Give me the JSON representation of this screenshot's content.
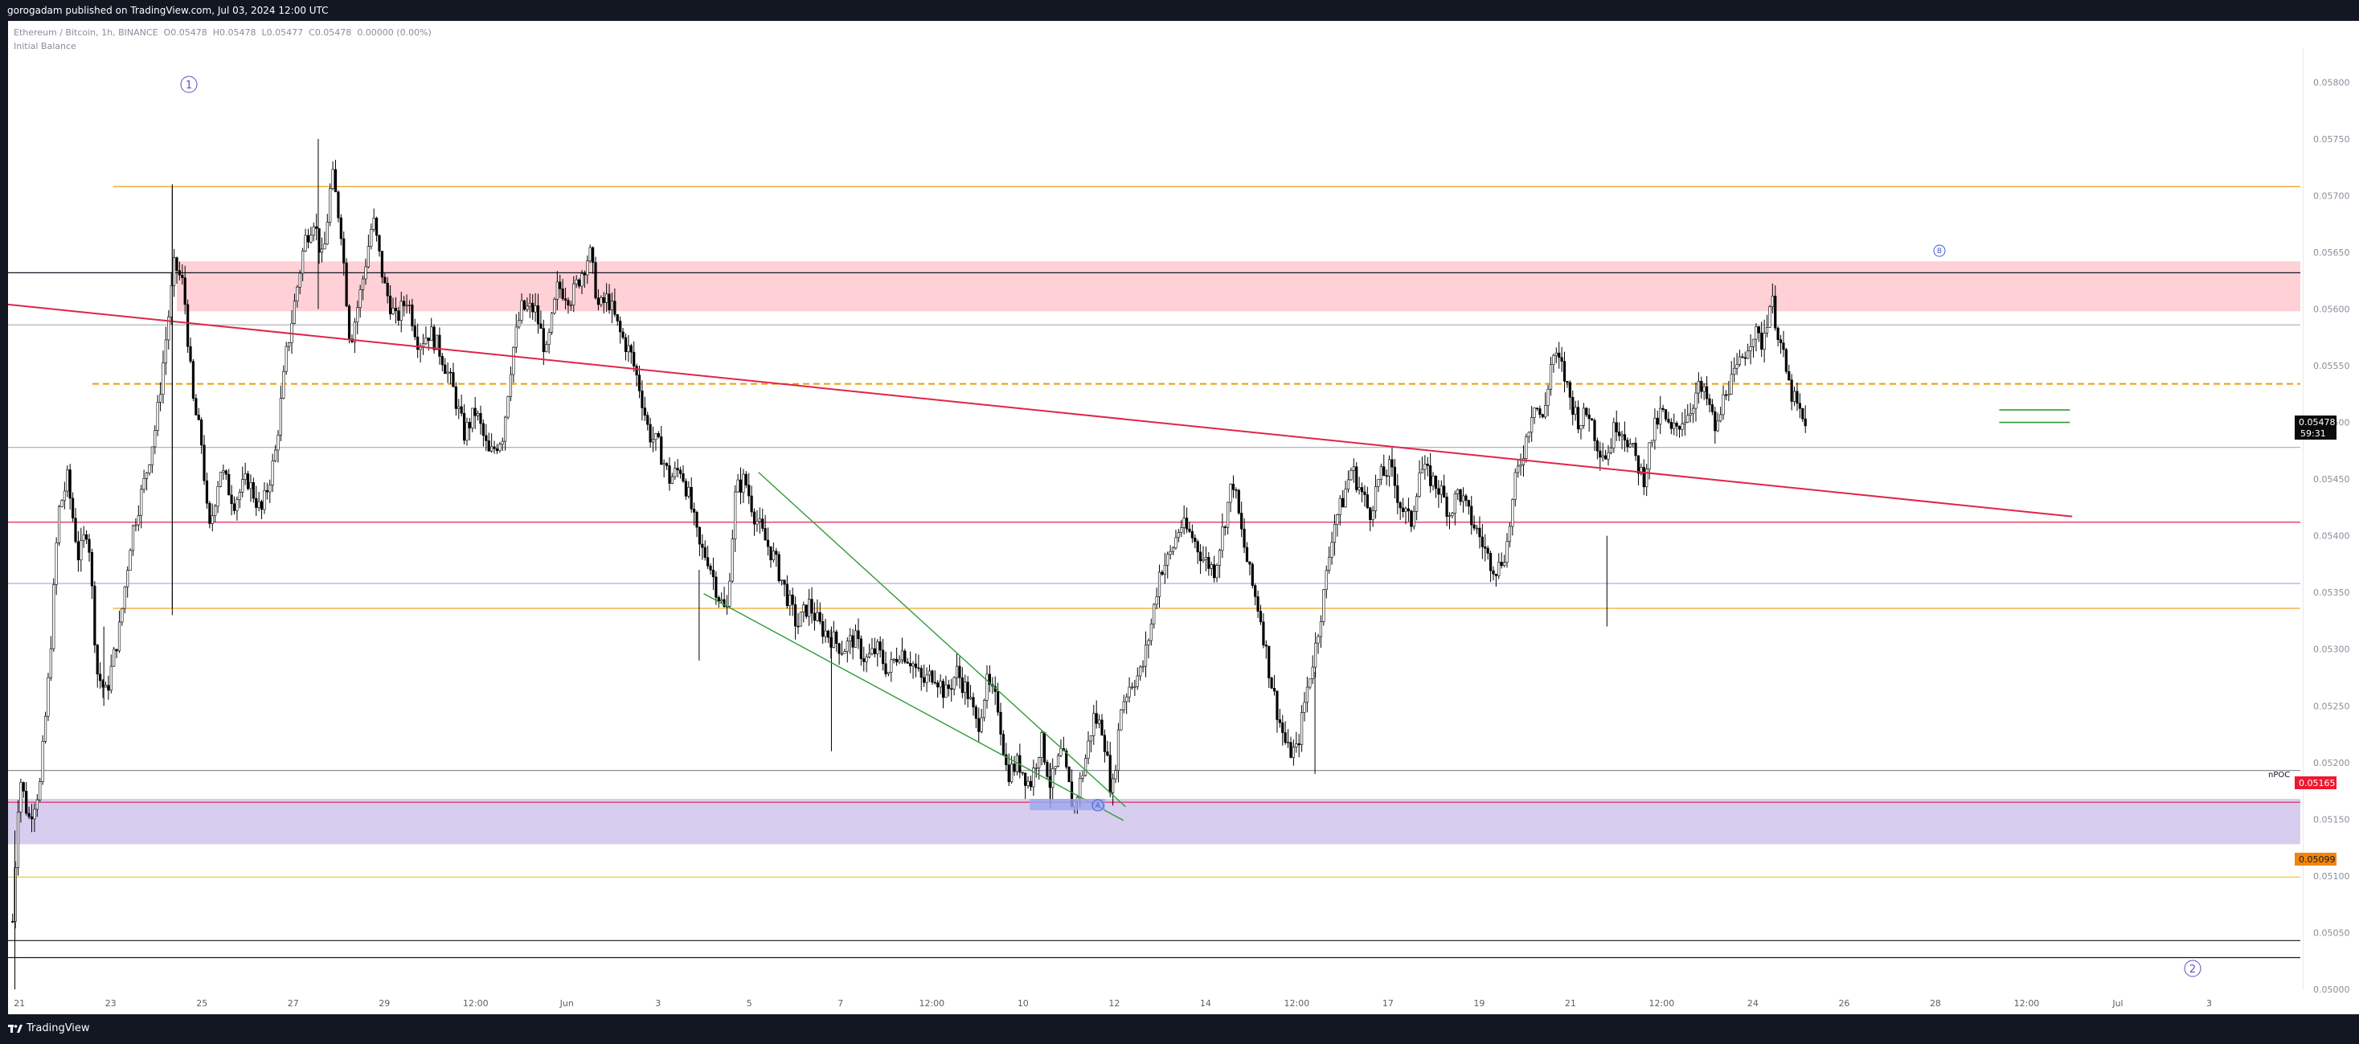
{
  "header": {
    "published": "gorogadam published on TradingView.com, Jul 03, 2024 12:00 UTC"
  },
  "legend": {
    "symbol": "Ethereum / Bitcoin, 1h, BINANCE",
    "o_label": "O",
    "o": "0.05478",
    "h_label": "H",
    "h": "0.05478",
    "l_label": "L",
    "l": "0.05477",
    "c_label": "C",
    "c": "0.05478",
    "change": "0.00000 (0.00%)",
    "indicator": "Initial Balance"
  },
  "footer": {
    "brand": "TradingView"
  },
  "markers": {
    "m1": "1",
    "m2": "2",
    "mA": "A",
    "mB": "B",
    "npoc": "nPOC"
  },
  "badges": {
    "last_price": "0.05478",
    "countdown": "59:31",
    "npoc_price": "0.05165",
    "level_price": "0.05099"
  },
  "colors": {
    "background": "#ffffff",
    "frame": "#131722",
    "candle": "#000000",
    "trend_red": "#e0244a",
    "trend_green": "#2e9c3a",
    "orange": "#f29b0a",
    "resistance_zone": "#ffd0d6",
    "support_zone": "#d7cdef",
    "purple_line": "#b39ddb",
    "badge_red": "#f0182f",
    "badge_orange": "#f2850a",
    "marker": "#5b4ec9"
  },
  "chart_data": {
    "type": "candlestick",
    "symbol": "Ethereum / Bitcoin",
    "timeframe": "1h",
    "exchange": "BINANCE",
    "ylim": [
      0.05,
      0.0583
    ],
    "y_ticks": [
      "0.05800",
      "0.05750",
      "0.05700",
      "0.05650",
      "0.05600",
      "0.05550",
      "0.05500",
      "0.05450",
      "0.05400",
      "0.05350",
      "0.05300",
      "0.05250",
      "0.05200",
      "0.05150",
      "0.05100",
      "0.05050",
      "0.05000"
    ],
    "x_ticks": [
      "21",
      "23",
      "25",
      "27",
      "29",
      "12:00",
      "Jun",
      "3",
      "5",
      "7",
      "12:00",
      "10",
      "12",
      "14",
      "12:00",
      "17",
      "19",
      "21",
      "12:00",
      "24",
      "26",
      "28",
      "12:00",
      "Jul",
      "3"
    ],
    "x_tick_units": [
      0,
      4,
      8,
      12,
      16,
      20,
      24,
      28,
      32,
      36,
      40,
      44,
      48,
      52,
      56,
      60,
      64,
      68,
      72,
      76,
      80,
      84,
      88,
      92,
      96
    ],
    "x_range": [
      -0.5,
      100
    ],
    "price_path": [
      [
        -0.3,
        0.0506
      ],
      [
        0,
        0.0519
      ],
      [
        0.4,
        0.0515
      ],
      [
        0.9,
        0.0518
      ],
      [
        1.3,
        0.0528
      ],
      [
        1.7,
        0.0542
      ],
      [
        2.1,
        0.0545
      ],
      [
        2.6,
        0.0538
      ],
      [
        3,
        0.0541
      ],
      [
        3.4,
        0.0528
      ],
      [
        3.8,
        0.0526
      ],
      [
        4.4,
        0.0532
      ],
      [
        4.9,
        0.054
      ],
      [
        5.5,
        0.0545
      ],
      [
        6,
        0.055
      ],
      [
        6.4,
        0.0557
      ],
      [
        6.8,
        0.0564
      ],
      [
        7.2,
        0.0562
      ],
      [
        7.6,
        0.0552
      ],
      [
        8,
        0.0548
      ],
      [
        8.3,
        0.054
      ],
      [
        8.8,
        0.0546
      ],
      [
        9.4,
        0.0543
      ],
      [
        10,
        0.0545
      ],
      [
        10.6,
        0.0542
      ],
      [
        11.2,
        0.0547
      ],
      [
        11.7,
        0.0556
      ],
      [
        12.1,
        0.0561
      ],
      [
        12.5,
        0.0566
      ],
      [
        12.9,
        0.0568
      ],
      [
        13.3,
        0.0564
      ],
      [
        13.7,
        0.0572
      ],
      [
        14.1,
        0.0567
      ],
      [
        14.5,
        0.0557
      ],
      [
        15,
        0.0562
      ],
      [
        15.5,
        0.0568
      ],
      [
        16,
        0.0562
      ],
      [
        16.5,
        0.0559
      ],
      [
        17,
        0.0561
      ],
      [
        17.5,
        0.0557
      ],
      [
        18,
        0.0558
      ],
      [
        18.5,
        0.0556
      ],
      [
        19,
        0.0553
      ],
      [
        19.5,
        0.0549
      ],
      [
        20,
        0.0551
      ],
      [
        20.6,
        0.0547
      ],
      [
        21.2,
        0.0549
      ],
      [
        21.6,
        0.0556
      ],
      [
        22,
        0.056
      ],
      [
        22.6,
        0.056
      ],
      [
        23.1,
        0.0556
      ],
      [
        23.6,
        0.0562
      ],
      [
        24.2,
        0.0561
      ],
      [
        24.6,
        0.0563
      ],
      [
        25,
        0.0565
      ],
      [
        25.4,
        0.056
      ],
      [
        25.8,
        0.0561
      ],
      [
        26.3,
        0.0558
      ],
      [
        26.8,
        0.0556
      ],
      [
        27.2,
        0.0553
      ],
      [
        27.6,
        0.0549
      ],
      [
        28,
        0.0548
      ],
      [
        28.5,
        0.0545
      ],
      [
        29,
        0.0546
      ],
      [
        29.4,
        0.0543
      ],
      [
        29.8,
        0.0539
      ],
      [
        30.2,
        0.0538
      ],
      [
        30.6,
        0.0535
      ],
      [
        31,
        0.0533
      ],
      [
        31.4,
        0.0544
      ],
      [
        31.8,
        0.0545
      ],
      [
        32.2,
        0.0542
      ],
      [
        32.6,
        0.054
      ],
      [
        33.1,
        0.0538
      ],
      [
        33.6,
        0.0535
      ],
      [
        34.1,
        0.0532
      ],
      [
        34.6,
        0.0534
      ],
      [
        35.1,
        0.0532
      ],
      [
        35.6,
        0.0531
      ],
      [
        36.1,
        0.053
      ],
      [
        36.6,
        0.0531
      ],
      [
        37.1,
        0.0529
      ],
      [
        37.6,
        0.053
      ],
      [
        38.1,
        0.0528
      ],
      [
        38.6,
        0.053
      ],
      [
        39.1,
        0.0529
      ],
      [
        39.6,
        0.0527
      ],
      [
        40.1,
        0.0528
      ],
      [
        40.6,
        0.0526
      ],
      [
        41.1,
        0.0528
      ],
      [
        41.6,
        0.0526
      ],
      [
        42,
        0.0523
      ],
      [
        42.4,
        0.0527
      ],
      [
        42.9,
        0.0525
      ],
      [
        43.3,
        0.0519
      ],
      [
        43.8,
        0.052
      ],
      [
        44.3,
        0.0518
      ],
      [
        44.8,
        0.0522
      ],
      [
        45.2,
        0.0518
      ],
      [
        45.7,
        0.0521
      ],
      [
        46.2,
        0.0516
      ],
      [
        46.6,
        0.0519
      ],
      [
        47.1,
        0.0524
      ],
      [
        47.5,
        0.0523
      ],
      [
        47.9,
        0.0517
      ],
      [
        48.3,
        0.0525
      ],
      [
        48.7,
        0.0527
      ],
      [
        49.2,
        0.0528
      ],
      [
        49.6,
        0.0532
      ],
      [
        50,
        0.0537
      ],
      [
        50.4,
        0.0538
      ],
      [
        50.9,
        0.0541
      ],
      [
        51.4,
        0.054
      ],
      [
        51.9,
        0.0538
      ],
      [
        52.4,
        0.0537
      ],
      [
        52.8,
        0.0541
      ],
      [
        53.2,
        0.0545
      ],
      [
        53.6,
        0.054
      ],
      [
        54,
        0.0536
      ],
      [
        54.4,
        0.0533
      ],
      [
        54.8,
        0.0528
      ],
      [
        55.2,
        0.0524
      ],
      [
        55.6,
        0.0521
      ],
      [
        56,
        0.0521
      ],
      [
        56.4,
        0.0526
      ],
      [
        56.8,
        0.053
      ],
      [
        57.2,
        0.0535
      ],
      [
        57.6,
        0.0541
      ],
      [
        58,
        0.0543
      ],
      [
        58.4,
        0.0546
      ],
      [
        58.8,
        0.0544
      ],
      [
        59.2,
        0.0542
      ],
      [
        59.6,
        0.0545
      ],
      [
        60.1,
        0.0546
      ],
      [
        60.5,
        0.0543
      ],
      [
        61,
        0.0541
      ],
      [
        61.4,
        0.0546
      ],
      [
        61.9,
        0.0545
      ],
      [
        62.3,
        0.0544
      ],
      [
        62.7,
        0.0542
      ],
      [
        63.1,
        0.0544
      ],
      [
        63.5,
        0.0542
      ],
      [
        64,
        0.054
      ],
      [
        64.4,
        0.0538
      ],
      [
        64.8,
        0.0537
      ],
      [
        65.2,
        0.0539
      ],
      [
        65.6,
        0.0545
      ],
      [
        66,
        0.0548
      ],
      [
        66.4,
        0.0552
      ],
      [
        66.8,
        0.055
      ],
      [
        67.2,
        0.0556
      ],
      [
        67.6,
        0.0555
      ],
      [
        68,
        0.0552
      ],
      [
        68.4,
        0.055
      ],
      [
        68.8,
        0.0551
      ],
      [
        69.2,
        0.0548
      ],
      [
        69.6,
        0.0547
      ],
      [
        70,
        0.055
      ],
      [
        70.4,
        0.0549
      ],
      [
        70.8,
        0.0547
      ],
      [
        71.2,
        0.0545
      ],
      [
        71.6,
        0.0549
      ],
      [
        72,
        0.0551
      ],
      [
        72.4,
        0.0549
      ],
      [
        72.8,
        0.055
      ],
      [
        73.2,
        0.0551
      ],
      [
        73.6,
        0.0553
      ],
      [
        74,
        0.0552
      ],
      [
        74.4,
        0.0549
      ],
      [
        74.8,
        0.0553
      ],
      [
        75.2,
        0.0554
      ],
      [
        75.6,
        0.0556
      ],
      [
        76,
        0.0558
      ],
      [
        76.4,
        0.0557
      ],
      [
        76.8,
        0.0561
      ],
      [
        77.2,
        0.0557
      ],
      [
        77.6,
        0.0553
      ],
      [
        78,
        0.0551
      ],
      [
        78.4,
        0.0549
      ]
    ],
    "series": [
      {
        "name": "",
        "color": "#000000",
        "style": "candles"
      }
    ],
    "horizontal_levels": [
      {
        "price": 0.05708,
        "color": "#f29b0a",
        "start_x": 4.1
      },
      {
        "price": 0.05632,
        "color": "#131722",
        "start_x": -0.5
      },
      {
        "price": 0.05586,
        "color": "#b0b3bd",
        "start_x": -0.5
      },
      {
        "price": 0.05534,
        "color": "#f29b0a",
        "dashed": true,
        "start_x": 3.2
      },
      {
        "price": 0.05478,
        "color": "#b0b3bd",
        "start_x": -0.5
      },
      {
        "price": 0.05412,
        "color": "#e0244a",
        "start_x": -0.5
      },
      {
        "price": 0.05358,
        "color": "#b39ddb",
        "start_x": -0.5
      },
      {
        "price": 0.05336,
        "color": "#f29b0a",
        "start_x": 4.1
      },
      {
        "price": 0.05193,
        "color": "#7f838c",
        "start_x": -0.5
      },
      {
        "price": 0.05165,
        "color": "#e0244a",
        "start_x": -0.5
      },
      {
        "price": 0.05099,
        "color": "#f2c21c",
        "start_x": -0.5
      },
      {
        "price": 0.05043,
        "color": "#131722",
        "start_x": -0.5
      },
      {
        "price": 0.05028,
        "color": "#131722",
        "start_x": -0.5
      }
    ],
    "zones": [
      {
        "from": 0.05598,
        "to": 0.05642,
        "color": "#ffd0d6",
        "start_x": 6.9
      },
      {
        "from": 0.05128,
        "to": 0.05168,
        "color": "#d7cdef",
        "start_x": -0.5
      }
    ],
    "trend_lines": [
      {
        "x1": -0.5,
        "y1": 0.05604,
        "x2": 90.0,
        "y2": 0.05417,
        "color": "#e0244a"
      },
      {
        "x1": 32.4,
        "y1": 0.05456,
        "x2": 48.5,
        "y2": 0.05161,
        "color": "#2e9c3a"
      },
      {
        "x1": 30.0,
        "y1": 0.05349,
        "x2": 48.4,
        "y2": 0.05149,
        "color": "#2e9c3a"
      }
    ]
  }
}
